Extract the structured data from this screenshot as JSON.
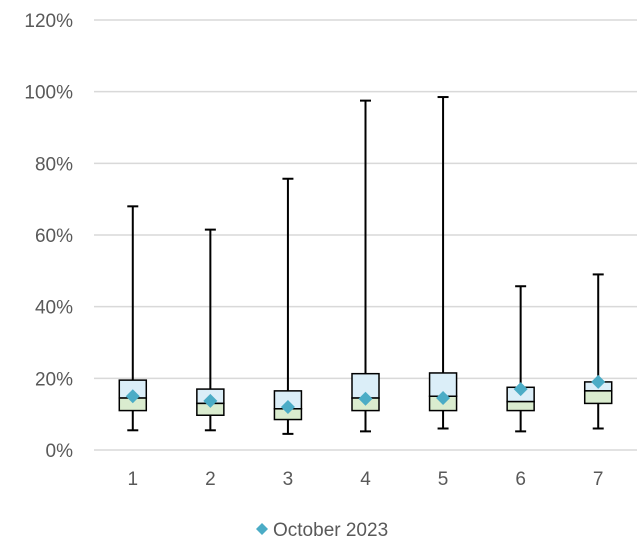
{
  "chart_data": {
    "type": "box",
    "categories": [
      "1",
      "2",
      "3",
      "4",
      "5",
      "6",
      "7"
    ],
    "y_ticks": [
      "0%",
      "20%",
      "40%",
      "60%",
      "80%",
      "100%",
      "120%"
    ],
    "ylim": [
      0,
      1.2
    ],
    "grid": true,
    "legend_position": "bottom",
    "boxes": [
      {
        "min": 0.055,
        "q1": 0.11,
        "median": 0.145,
        "q3": 0.195,
        "max": 0.68
      },
      {
        "min": 0.055,
        "q1": 0.097,
        "median": 0.13,
        "q3": 0.17,
        "max": 0.615
      },
      {
        "min": 0.045,
        "q1": 0.085,
        "median": 0.115,
        "q3": 0.165,
        "max": 0.757
      },
      {
        "min": 0.052,
        "q1": 0.11,
        "median": 0.145,
        "q3": 0.213,
        "max": 0.975
      },
      {
        "min": 0.06,
        "q1": 0.11,
        "median": 0.15,
        "q3": 0.215,
        "max": 0.985
      },
      {
        "min": 0.052,
        "q1": 0.11,
        "median": 0.135,
        "q3": 0.175,
        "max": 0.457
      },
      {
        "min": 0.06,
        "q1": 0.13,
        "median": 0.165,
        "q3": 0.19,
        "max": 0.49
      }
    ],
    "series": [
      {
        "name": "October 2023",
        "values": [
          0.15,
          0.137,
          0.12,
          0.143,
          0.145,
          0.17,
          0.19
        ]
      }
    ],
    "colors": {
      "upper_box": "#dbeef8",
      "lower_box": "#daeccf",
      "marker": "#4bacc6",
      "whisker": "#000000",
      "grid": "#d9d9d9",
      "text": "#595959"
    }
  }
}
